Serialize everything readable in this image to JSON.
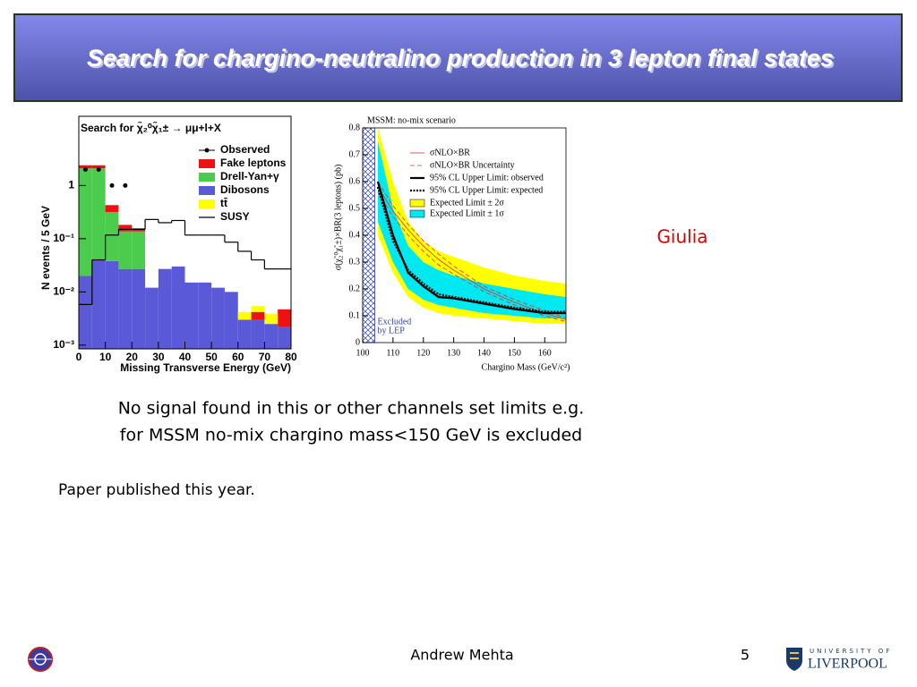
{
  "slide": {
    "title": "Search for chargino-neutralino production in 3 lepton final states",
    "note": "Giulia",
    "body": [
      "No signal found in this or other channels set limits e.g.",
      "for MSSM no-mix chargino mass<150 GeV is excluded"
    ],
    "paper": "Paper published this year.",
    "footer": {
      "author": "Andrew Mehta",
      "page": "5",
      "logo": [
        "UNIVERSITY OF",
        "LIVERPOOL"
      ]
    }
  },
  "chart_data": [
    {
      "type": "histogram",
      "title": "Search for χ̃₂⁰χ̃₁± → μμ+l+X",
      "xlabel": "Missing Transverse Energy (GeV)",
      "ylabel": "N events / 5 GeV",
      "bins": [
        0,
        5,
        10,
        15,
        20,
        25,
        30,
        35,
        40,
        45,
        50,
        55,
        60,
        65,
        70,
        75,
        80
      ],
      "xlim": [
        0,
        80
      ],
      "xticks": [
        0,
        10,
        20,
        30,
        40,
        50,
        60,
        70,
        80
      ],
      "log_y": true,
      "ylim": [
        0.00085,
        20
      ],
      "yticks": [
        {
          "value": 0.001,
          "label": "10⁻³"
        },
        {
          "value": 0.01,
          "label": "10⁻²"
        },
        {
          "value": 0.1,
          "label": "10⁻¹"
        },
        1
      ],
      "stacked": true,
      "series": [
        {
          "name": "Dibosons",
          "color": "#5a5ad8",
          "values": [
            0.02,
            0.04,
            0.038,
            0.027,
            0.027,
            0.012,
            0.027,
            0.03,
            0.015,
            0.015,
            0.012,
            0.01,
            0.003,
            0.003,
            0.0025,
            0.0022
          ]
        },
        {
          "name": "Drell-Yan+γ",
          "color": "#4ccc4c",
          "values": [
            2.08,
            2.06,
            0.28,
            0.11,
            0.11,
            0,
            0,
            0,
            0,
            0,
            0,
            0,
            0,
            0,
            0,
            0
          ]
        },
        {
          "name": "Fake leptons",
          "color": "#ee1111",
          "values": [
            0.3,
            0.3,
            0.11,
            0.045,
            0.02,
            0,
            0,
            0,
            0,
            0,
            0,
            0,
            0,
            0.0012,
            0,
            0.0025
          ]
        },
        {
          "name": "tt̄",
          "color": "#ffff00",
          "values": [
            0,
            0,
            0,
            0,
            0,
            0,
            0,
            0,
            0,
            0,
            0,
            0,
            0.0012,
            0.0012,
            0.0014,
            0
          ]
        }
      ],
      "line": {
        "name": "SUSY",
        "color": "#000000",
        "values": [
          0.0058,
          0.04,
          0.117,
          0.15,
          0.15,
          0.23,
          0.2,
          0.22,
          0.117,
          0.117,
          0.117,
          0.086,
          0.058,
          0.04,
          0.027,
          0.027
        ]
      },
      "points": {
        "name": "Observed",
        "color": "#000000",
        "x": [
          2.5,
          7.5,
          12.5,
          17.5
        ],
        "values": [
          2,
          2,
          1,
          1
        ]
      }
    },
    {
      "type": "line",
      "title": "MSSM: no-mix scenario",
      "xlabel": "Chargino Mass (GeV/c²)",
      "ylabel": "σ(χ̃₂⁰χ̃₁±)×BR(3 leptons) (pb)",
      "xlim": [
        100,
        167
      ],
      "xticks": [
        100,
        110,
        120,
        130,
        140,
        150,
        160
      ],
      "ylim": [
        0,
        0.8
      ],
      "yticks": [
        0,
        0.1,
        0.2,
        0.3,
        0.4,
        0.5,
        0.6,
        0.7,
        0.8
      ],
      "x": [
        105,
        110,
        115,
        120,
        125,
        130,
        140,
        150,
        160,
        167
      ],
      "bands": [
        {
          "name": "Expected Limit ± 2σ",
          "color": "#ffff00",
          "low": [
            0.4,
            0.26,
            0.17,
            0.13,
            0.11,
            0.1,
            0.09,
            0.08,
            0.07,
            0.07
          ],
          "high": [
            0.8,
            0.6,
            0.45,
            0.38,
            0.34,
            0.32,
            0.28,
            0.25,
            0.23,
            0.22
          ]
        },
        {
          "name": "Expected Limit ± 1σ",
          "color": "#00e8f0",
          "low": [
            0.45,
            0.3,
            0.2,
            0.16,
            0.14,
            0.13,
            0.11,
            0.1,
            0.09,
            0.09
          ],
          "high": [
            0.75,
            0.5,
            0.36,
            0.3,
            0.27,
            0.25,
            0.22,
            0.2,
            0.18,
            0.17
          ]
        }
      ],
      "uncertainty": {
        "name": "σNLO×BR Uncertainty",
        "color": "#e03030",
        "low": [
          0.56,
          0.47,
          0.4,
          0.34,
          0.29,
          0.255,
          0.19,
          0.14,
          0.1,
          0.078
        ],
        "high": [
          0.6,
          0.51,
          0.44,
          0.38,
          0.33,
          0.285,
          0.21,
          0.16,
          0.12,
          0.09
        ]
      },
      "series": [
        {
          "name": "σNLO×BR",
          "color": "#e03030",
          "values": [
            0.58,
            0.49,
            0.42,
            0.36,
            0.31,
            0.27,
            0.2,
            0.15,
            0.11,
            0.085
          ]
        },
        {
          "name": "95% CL Upper Limit: observed",
          "color": "#000000",
          "values": [
            0.6,
            0.4,
            0.26,
            0.21,
            0.17,
            0.165,
            0.145,
            0.125,
            0.11,
            0.11
          ]
        },
        {
          "name": "95% CL Upper Limit: expected",
          "color": "#000000",
          "dashed": true,
          "values": [
            0.58,
            0.38,
            0.27,
            0.22,
            0.18,
            0.17,
            0.15,
            0.13,
            0.115,
            0.115
          ]
        }
      ],
      "excluded": {
        "label": [
          "Excluded",
          "by LEP"
        ],
        "x_range": [
          100,
          104
        ],
        "color": "#3040c0"
      }
    }
  ]
}
